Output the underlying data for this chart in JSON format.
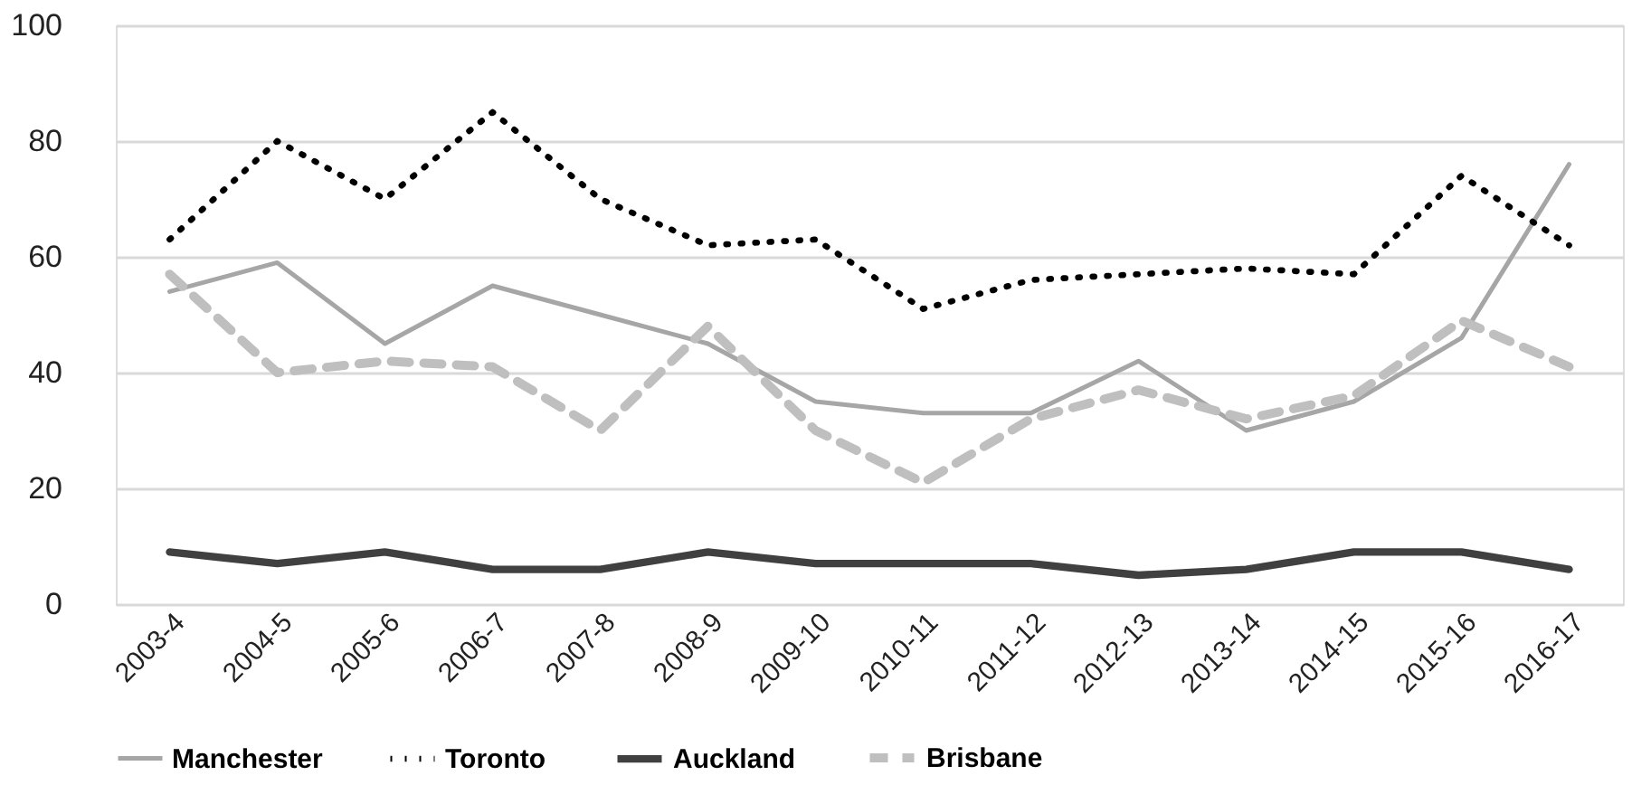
{
  "chart_data": {
    "type": "line",
    "categories": [
      "2003-4",
      "2004-5",
      "2005-6",
      "2006-7",
      "2007-8",
      "2008-9",
      "2009-10",
      "2010-11",
      "2011-12",
      "2012-13",
      "2013-14",
      "2014-15",
      "2015-16",
      "2016-17"
    ],
    "series": [
      {
        "name": "Manchester",
        "color": "#a6a6a6",
        "line_style": "solid",
        "values": [
          54,
          59,
          45,
          55,
          50,
          45,
          35,
          33,
          33,
          42,
          30,
          35,
          46,
          76
        ]
      },
      {
        "name": "Toronto",
        "color": "#000000",
        "line_style": "dotted",
        "values": [
          63,
          80,
          70,
          85,
          70,
          62,
          63,
          51,
          56,
          57,
          58,
          57,
          74,
          62
        ]
      },
      {
        "name": "Auckland",
        "color": "#404040",
        "line_style": "solid",
        "values": [
          9,
          7,
          9,
          6,
          6,
          9,
          7,
          7,
          7,
          5,
          6,
          9,
          9,
          6
        ]
      },
      {
        "name": "Brisbane",
        "color": "#bfbfbf",
        "line_style": "dashed",
        "values": [
          57,
          40,
          42,
          41,
          30,
          48,
          30,
          21,
          32,
          37,
          32,
          36,
          49,
          41
        ]
      }
    ],
    "ylim": [
      0,
      100
    ],
    "yticks": [
      0,
      20,
      40,
      60,
      80,
      100
    ],
    "grid": "y",
    "legend": "bottom",
    "marker": "none"
  }
}
